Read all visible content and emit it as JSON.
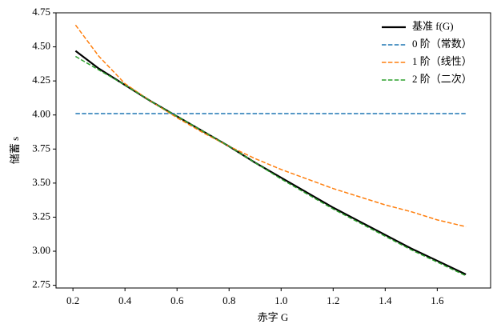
{
  "chart_data": {
    "type": "line",
    "x_label": "赤字 G",
    "y_label": "储蓄 s",
    "x": [
      0.21,
      0.3,
      0.4,
      0.5,
      0.6,
      0.7,
      0.8,
      0.9,
      1.0,
      1.1,
      1.2,
      1.3,
      1.4,
      1.5,
      1.6,
      1.71
    ],
    "series": [
      {
        "name": "基准 f(G)",
        "color": "#000000",
        "style": "solid",
        "width": 2.2,
        "values": [
          4.47,
          4.34,
          4.22,
          4.1,
          3.99,
          3.88,
          3.77,
          3.65,
          3.54,
          3.43,
          3.32,
          3.22,
          3.12,
          3.02,
          2.93,
          2.83
        ]
      },
      {
        "name": "0 阶（常数）",
        "color": "#1f77b4",
        "style": "dashed",
        "width": 1.5,
        "values": [
          4.01,
          4.01,
          4.01,
          4.01,
          4.01,
          4.01,
          4.01,
          4.01,
          4.01,
          4.01,
          4.01,
          4.01,
          4.01,
          4.01,
          4.01,
          4.01
        ]
      },
      {
        "name": "1 阶（线性）",
        "color": "#ff7f0e",
        "style": "dashed",
        "width": 1.5,
        "values": [
          4.66,
          4.43,
          4.23,
          4.1,
          3.98,
          3.87,
          3.77,
          3.68,
          3.6,
          3.53,
          3.46,
          3.4,
          3.34,
          3.29,
          3.23,
          3.18
        ]
      },
      {
        "name": "2 阶（二次）",
        "color": "#2ca02c",
        "style": "dashed",
        "width": 1.5,
        "values": [
          4.43,
          4.33,
          4.22,
          4.1,
          3.99,
          3.88,
          3.77,
          3.65,
          3.53,
          3.42,
          3.31,
          3.21,
          3.11,
          3.01,
          2.92,
          2.82
        ]
      }
    ],
    "xlim": [
      0.135,
      1.805
    ],
    "ylim": [
      2.73,
      4.75
    ],
    "xticks": [
      0.2,
      0.4,
      0.6,
      0.8,
      {
        "value": 1,
        "label": "1.0"
      },
      1.2,
      1.4,
      1.6
    ],
    "yticks": [
      2.75,
      {
        "value": 3,
        "label": "3.00"
      },
      3.25,
      {
        "value": 3.5,
        "label": "3.50"
      },
      3.75,
      {
        "value": 4,
        "label": "4.00"
      },
      4.25,
      {
        "value": 4.5,
        "label": "4.50"
      },
      4.75
    ],
    "grid": false,
    "legend": "upper right"
  }
}
